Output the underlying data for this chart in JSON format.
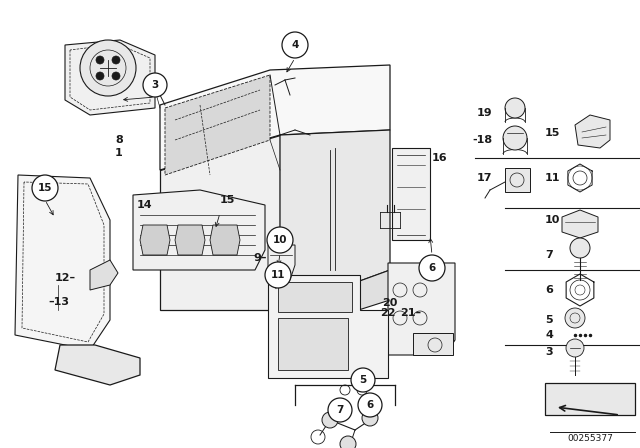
{
  "bg_color": "#ffffff",
  "line_color": "#1a1a1a",
  "diagram_id": "00255377",
  "figsize": [
    6.4,
    4.48
  ],
  "dpi": 100
}
